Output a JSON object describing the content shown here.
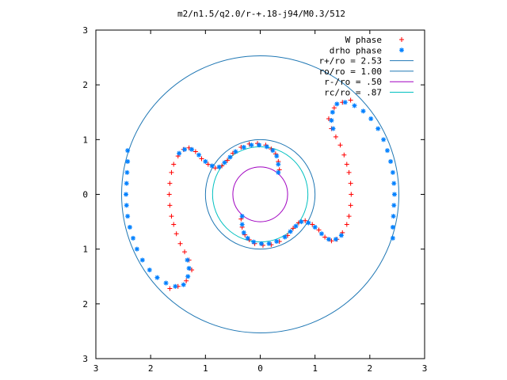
{
  "chart_data": {
    "type": "scatter",
    "title": "m2/n1.5/q2.0/r-+.18-j94/M0.3/512",
    "xlabel": "",
    "ylabel": "",
    "xlim": [
      -3,
      3
    ],
    "ylim": [
      -3,
      3
    ],
    "grid": false,
    "legend_position": "top-right",
    "x_ticks": [
      {
        "value": -3,
        "label": "3"
      },
      {
        "value": -2,
        "label": "2"
      },
      {
        "value": -1,
        "label": "1"
      },
      {
        "value": 0,
        "label": "0"
      },
      {
        "value": 1,
        "label": "1"
      },
      {
        "value": 2,
        "label": "2"
      },
      {
        "value": 3,
        "label": "3"
      }
    ],
    "y_ticks": [
      {
        "value": 3,
        "label": "3"
      },
      {
        "value": 2,
        "label": "2"
      },
      {
        "value": 1,
        "label": "1"
      },
      {
        "value": 0,
        "label": "0"
      },
      {
        "value": -1,
        "label": "1"
      },
      {
        "value": -2,
        "label": "2"
      },
      {
        "value": -3,
        "label": "3"
      }
    ],
    "legend": [
      {
        "label": "W phase",
        "marker": "+",
        "color": "#ff0000"
      },
      {
        "label": "drho phase",
        "marker": "*",
        "color": "#0080ff"
      },
      {
        "label": "r+/ro = 2.53",
        "marker": "line",
        "color": "#1f77b4"
      },
      {
        "label": "ro/ro = 1.00",
        "marker": "line",
        "color": "#1f77b4"
      },
      {
        "label": "r-/ro =  .50",
        "marker": "line",
        "color": "#a000c0"
      },
      {
        "label": "rc/ro =  .87",
        "marker": "line",
        "color": "#00c0c0"
      }
    ],
    "circles": [
      {
        "name": "r+/ro",
        "radius": 2.53,
        "color": "#1f77b4"
      },
      {
        "name": "ro/ro",
        "radius": 1.0,
        "color": "#1f77b4"
      },
      {
        "name": "r-/ro",
        "radius": 0.5,
        "color": "#a000c0"
      },
      {
        "name": "rc/ro",
        "radius": 0.87,
        "color": "#00c0c0"
      }
    ],
    "series": [
      {
        "name": "W phase",
        "color": "#ff0000",
        "marker": "+",
        "points": [
          [
            0.35,
            0.45
          ],
          [
            0.33,
            0.6
          ],
          [
            0.28,
            0.74
          ],
          [
            0.2,
            0.83
          ],
          [
            0.1,
            0.9
          ],
          [
            -0.05,
            0.93
          ],
          [
            -0.2,
            0.92
          ],
          [
            -0.35,
            0.86
          ],
          [
            -0.5,
            0.75
          ],
          [
            -0.6,
            0.62
          ],
          [
            -0.7,
            0.52
          ],
          [
            -0.82,
            0.48
          ],
          [
            -0.95,
            0.55
          ],
          [
            -1.07,
            0.65
          ],
          [
            -1.18,
            0.78
          ],
          [
            -1.3,
            0.85
          ],
          [
            -1.4,
            0.82
          ],
          [
            -1.5,
            0.7
          ],
          [
            -1.58,
            0.55
          ],
          [
            -1.62,
            0.4
          ],
          [
            -1.65,
            0.2
          ],
          [
            -1.66,
            0.0
          ],
          [
            -1.65,
            -0.2
          ],
          [
            -1.62,
            -0.4
          ],
          [
            -1.58,
            -0.55
          ],
          [
            -1.53,
            -0.72
          ],
          [
            -1.46,
            -0.9
          ],
          [
            -1.38,
            -1.05
          ],
          [
            -1.3,
            -1.2
          ],
          [
            -1.25,
            -1.38
          ],
          [
            -1.35,
            -1.58
          ],
          [
            -1.5,
            -1.68
          ],
          [
            -1.65,
            -1.72
          ],
          [
            -0.35,
            -0.45
          ],
          [
            -0.33,
            -0.6
          ],
          [
            -0.28,
            -0.74
          ],
          [
            -0.2,
            -0.83
          ],
          [
            -0.1,
            -0.9
          ],
          [
            0.05,
            -0.93
          ],
          [
            0.2,
            -0.92
          ],
          [
            0.35,
            -0.86
          ],
          [
            0.5,
            -0.75
          ],
          [
            0.6,
            -0.62
          ],
          [
            0.7,
            -0.52
          ],
          [
            0.82,
            -0.48
          ],
          [
            0.95,
            -0.55
          ],
          [
            1.07,
            -0.65
          ],
          [
            1.18,
            -0.78
          ],
          [
            1.3,
            -0.85
          ],
          [
            1.4,
            -0.82
          ],
          [
            1.5,
            -0.7
          ],
          [
            1.58,
            -0.55
          ],
          [
            1.62,
            -0.4
          ],
          [
            1.65,
            -0.2
          ],
          [
            1.66,
            0.0
          ],
          [
            1.65,
            0.2
          ],
          [
            1.62,
            0.4
          ],
          [
            1.58,
            0.55
          ],
          [
            1.53,
            0.72
          ],
          [
            1.46,
            0.9
          ],
          [
            1.38,
            1.05
          ],
          [
            1.3,
            1.2
          ],
          [
            1.25,
            1.38
          ],
          [
            1.35,
            1.58
          ],
          [
            1.5,
            1.68
          ],
          [
            1.65,
            1.72
          ]
        ]
      },
      {
        "name": "drho phase",
        "color": "#0080ff",
        "marker": "*",
        "points": [
          [
            0.33,
            0.4
          ],
          [
            0.33,
            0.55
          ],
          [
            0.3,
            0.7
          ],
          [
            0.23,
            0.8
          ],
          [
            0.12,
            0.87
          ],
          [
            -0.02,
            0.9
          ],
          [
            -0.16,
            0.9
          ],
          [
            -0.3,
            0.86
          ],
          [
            -0.45,
            0.78
          ],
          [
            -0.55,
            0.68
          ],
          [
            -0.65,
            0.58
          ],
          [
            -0.75,
            0.5
          ],
          [
            -0.88,
            0.52
          ],
          [
            -1.0,
            0.6
          ],
          [
            -1.12,
            0.72
          ],
          [
            -1.25,
            0.82
          ],
          [
            -1.38,
            0.82
          ],
          [
            -1.48,
            0.75
          ],
          [
            -2.42,
            0.8
          ],
          [
            -2.42,
            0.6
          ],
          [
            -2.43,
            0.4
          ],
          [
            -2.44,
            0.2
          ],
          [
            -2.45,
            0.0
          ],
          [
            -2.44,
            -0.2
          ],
          [
            -2.42,
            -0.4
          ],
          [
            -2.38,
            -0.6
          ],
          [
            -2.32,
            -0.8
          ],
          [
            -2.25,
            -1.0
          ],
          [
            -2.15,
            -1.2
          ],
          [
            -2.02,
            -1.38
          ],
          [
            -1.88,
            -1.52
          ],
          [
            -1.72,
            -1.62
          ],
          [
            -1.55,
            -1.68
          ],
          [
            -1.4,
            -1.65
          ],
          [
            -1.32,
            -1.5
          ],
          [
            -1.3,
            -1.35
          ],
          [
            -1.33,
            -1.2
          ],
          [
            -0.33,
            -0.4
          ],
          [
            -0.33,
            -0.55
          ],
          [
            -0.3,
            -0.7
          ],
          [
            -0.23,
            -0.8
          ],
          [
            -0.12,
            -0.87
          ],
          [
            0.02,
            -0.9
          ],
          [
            0.16,
            -0.9
          ],
          [
            0.3,
            -0.86
          ],
          [
            0.45,
            -0.78
          ],
          [
            0.55,
            -0.68
          ],
          [
            0.65,
            -0.58
          ],
          [
            0.75,
            -0.5
          ],
          [
            0.88,
            -0.52
          ],
          [
            1.0,
            -0.6
          ],
          [
            1.12,
            -0.72
          ],
          [
            1.25,
            -0.82
          ],
          [
            1.38,
            -0.82
          ],
          [
            1.48,
            -0.75
          ],
          [
            2.42,
            -0.8
          ],
          [
            2.42,
            -0.6
          ],
          [
            2.43,
            -0.4
          ],
          [
            2.44,
            -0.2
          ],
          [
            2.45,
            0.0
          ],
          [
            2.44,
            0.2
          ],
          [
            2.42,
            0.4
          ],
          [
            2.38,
            0.6
          ],
          [
            2.32,
            0.8
          ],
          [
            2.25,
            1.0
          ],
          [
            2.15,
            1.2
          ],
          [
            2.02,
            1.38
          ],
          [
            1.88,
            1.52
          ],
          [
            1.72,
            1.62
          ],
          [
            1.55,
            1.68
          ],
          [
            1.4,
            1.65
          ],
          [
            1.32,
            1.5
          ],
          [
            1.3,
            1.35
          ],
          [
            1.33,
            1.2
          ]
        ]
      }
    ]
  }
}
